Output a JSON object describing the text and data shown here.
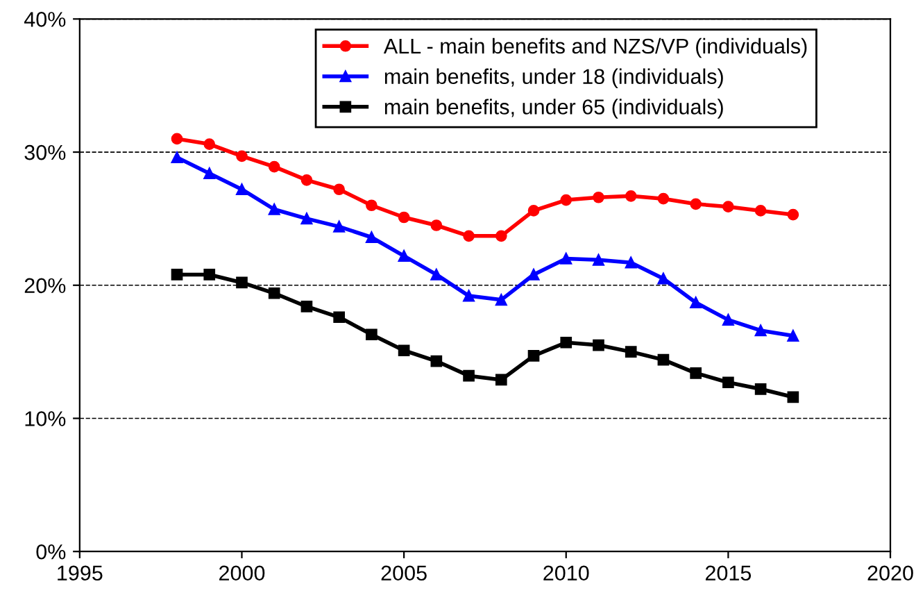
{
  "chart_data": {
    "type": "line",
    "x": [
      1998,
      1999,
      2000,
      2001,
      2002,
      2003,
      2004,
      2005,
      2006,
      2007,
      2008,
      2009,
      2010,
      2011,
      2012,
      2013,
      2014,
      2015,
      2016,
      2017
    ],
    "series": [
      {
        "name": "ALL - main benefits and NZS/VP (individuals)",
        "color": "#ff0000",
        "marker": "circle",
        "values": [
          31.0,
          30.6,
          29.7,
          28.9,
          27.9,
          27.2,
          26.0,
          25.1,
          24.5,
          23.7,
          23.7,
          25.6,
          26.4,
          26.6,
          26.7,
          26.5,
          26.1,
          25.9,
          25.6,
          25.3
        ]
      },
      {
        "name": "main benefits, under 18 (individuals)",
        "color": "#0000ff",
        "marker": "triangle",
        "values": [
          29.6,
          28.4,
          27.2,
          25.7,
          25.0,
          24.4,
          23.6,
          22.2,
          20.8,
          19.2,
          18.9,
          20.8,
          22.0,
          21.9,
          21.7,
          20.5,
          18.7,
          17.4,
          16.6,
          16.2
        ]
      },
      {
        "name": "main benefits, under 65 (individuals)",
        "color": "#000000",
        "marker": "square",
        "values": [
          20.8,
          20.8,
          20.2,
          19.4,
          18.4,
          17.6,
          16.3,
          15.1,
          14.3,
          13.2,
          12.9,
          14.7,
          15.7,
          15.5,
          15.0,
          14.4,
          13.4,
          12.7,
          12.2,
          11.6
        ]
      }
    ],
    "xlim": [
      1995,
      2020
    ],
    "xticks": [
      1995,
      2000,
      2005,
      2010,
      2015,
      2020
    ],
    "ylim": [
      0,
      40
    ],
    "yticks": [
      {
        "value": 0,
        "label": "0%"
      },
      {
        "value": 10,
        "label": "10%"
      },
      {
        "value": 20,
        "label": "20%"
      },
      {
        "value": 30,
        "label": "30%"
      },
      {
        "value": 40,
        "label": "40%"
      }
    ],
    "grid": "y",
    "legend": "top right",
    "line_style": "solid"
  }
}
